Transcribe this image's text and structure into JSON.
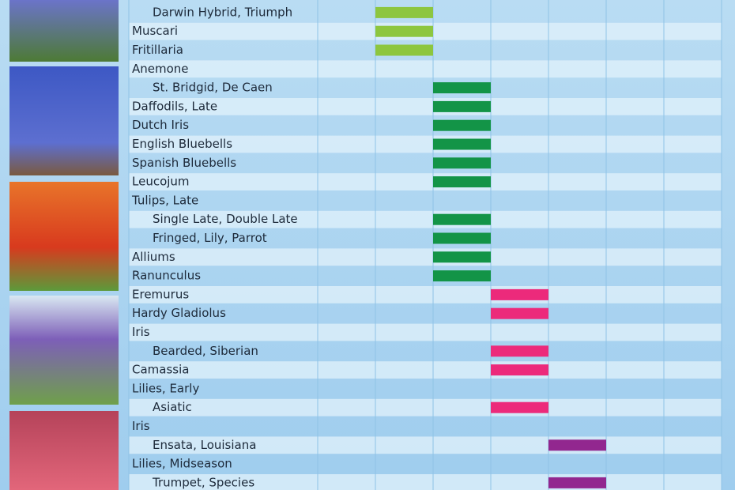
{
  "rows": [
    {
      "label": "Darwin Hybrid, Triumph",
      "level": 1,
      "column": 1,
      "color": "#8dc63f"
    },
    {
      "label": "Muscari",
      "level": 0,
      "column": 1,
      "color": "#8dc63f"
    },
    {
      "label": "Fritillaria",
      "level": 0,
      "column": 1,
      "color": "#8dc63f"
    },
    {
      "label": "Anemone",
      "level": 0
    },
    {
      "label": "St. Bridgid, De Caen",
      "level": 1,
      "column": 2,
      "color": "#139447"
    },
    {
      "label": "Daffodils, Late",
      "level": 0,
      "column": 2,
      "color": "#139447"
    },
    {
      "label": "Dutch Iris",
      "level": 0,
      "column": 2,
      "color": "#139447"
    },
    {
      "label": "English Bluebells",
      "level": 0,
      "column": 2,
      "color": "#139447"
    },
    {
      "label": "Spanish Bluebells",
      "level": 0,
      "column": 2,
      "color": "#139447"
    },
    {
      "label": "Leucojum",
      "level": 0,
      "column": 2,
      "color": "#139447"
    },
    {
      "label": "Tulips, Late",
      "level": 0
    },
    {
      "label": "Single Late, Double Late",
      "level": 1,
      "column": 2,
      "color": "#139447"
    },
    {
      "label": "Fringed, Lily, Parrot",
      "level": 1,
      "column": 2,
      "color": "#139447"
    },
    {
      "label": "Alliums",
      "level": 0,
      "column": 2,
      "color": "#139447"
    },
    {
      "label": "Ranunculus",
      "level": 0,
      "column": 2,
      "color": "#139447"
    },
    {
      "label": "Eremurus",
      "level": 0,
      "column": 3,
      "color": "#ec2a7b"
    },
    {
      "label": "Hardy Gladiolus",
      "level": 0,
      "column": 3,
      "color": "#ec2a7b"
    },
    {
      "label": "Iris",
      "level": 0
    },
    {
      "label": "Bearded, Siberian",
      "level": 1,
      "column": 3,
      "color": "#ec2a7b"
    },
    {
      "label": "Camassia",
      "level": 0,
      "column": 3,
      "color": "#ec2a7b"
    },
    {
      "label": "Lilies, Early",
      "level": 0
    },
    {
      "label": "Asiatic",
      "level": 1,
      "column": 3,
      "color": "#ec2a7b"
    },
    {
      "label": "Iris",
      "level": 0
    },
    {
      "label": "Ensata, Louisiana",
      "level": 1,
      "column": 4,
      "color": "#92278f"
    },
    {
      "label": "Lilies, Midseason",
      "level": 0
    },
    {
      "label": "Trumpet, Species",
      "level": 1,
      "column": 4,
      "color": "#92278f"
    }
  ]
}
